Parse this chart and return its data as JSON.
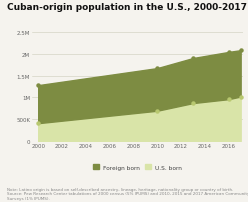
{
  "title": "Cuban-origin population in the U.S., 2000-2017",
  "years": [
    2000,
    2010,
    2013,
    2016,
    2017
  ],
  "foreign_born": [
    870000,
    975000,
    1030000,
    1080000,
    1060000
  ],
  "us_born": [
    410000,
    695000,
    870000,
    960000,
    1020000
  ],
  "total": [
    1280000,
    1670000,
    1900000,
    2040000,
    2080000
  ],
  "foreign_born_color": "#7d8c42",
  "us_born_color": "#d9e4a8",
  "background_color": "#f5f3ee",
  "title_fontsize": 6.5,
  "note_text": "Note: Latino origin is based on self-described ancestry, lineage, heritage, nationality group or country of birth.\nSource: Pew Research Center tabulations of 2000 census (5% IPUMS) and 2010, 2015 and 2017 American Community\nSurveys (1% IPUMS).",
  "legend_foreign": "Foreign born",
  "legend_us": "U.S. born",
  "xlim": [
    1999.5,
    2017.2
  ],
  "ylim": [
    0,
    2600000
  ],
  "yticks": [
    0,
    500000,
    1000000,
    1500000,
    2000000,
    2500000
  ],
  "ytick_labels": [
    "0",
    "500K",
    "1M",
    "1.5M",
    "2M",
    "2.5M"
  ],
  "xticks": [
    2000,
    2002,
    2004,
    2006,
    2008,
    2010,
    2012,
    2014,
    2016
  ]
}
